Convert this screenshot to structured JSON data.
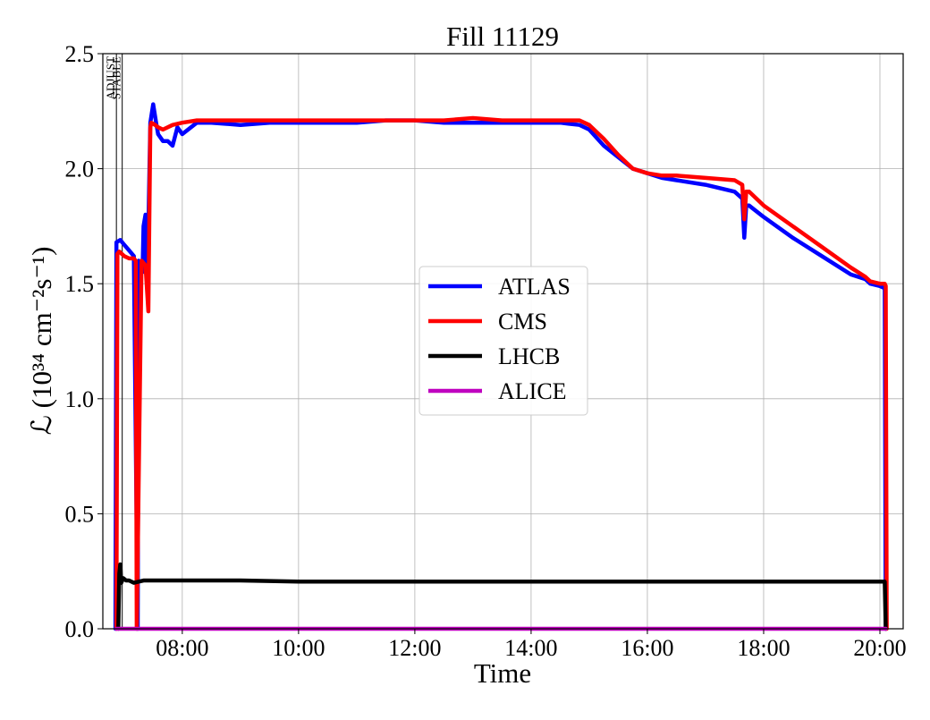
{
  "chart_data": {
    "type": "line",
    "title": "Fill 11129",
    "xlabel": "Time",
    "ylabel": "ℒ (10³⁴ cm⁻²s⁻¹)",
    "ylim": [
      0,
      2.5
    ],
    "xlim": [
      "06:38",
      "20:24"
    ],
    "grid": true,
    "legend_position": "center-right",
    "x_ticks": [
      "08:00",
      "10:00",
      "12:00",
      "14:00",
      "16:00",
      "18:00",
      "20:00"
    ],
    "y_ticks": [
      "0.0",
      "0.5",
      "1.0",
      "1.5",
      "2.0",
      "2.5"
    ],
    "phase_markers": [
      {
        "label": "ADJUST",
        "time": "06:52"
      },
      {
        "label": "STABLE",
        "time": "06:58"
      }
    ],
    "series": [
      {
        "name": "ATLAS",
        "color": "#0000ff",
        "x": [
          "06:51",
          "06:52",
          "06:56",
          "07:00",
          "07:04",
          "07:10",
          "07:14",
          "07:15",
          "07:19",
          "07:20",
          "07:22",
          "07:24",
          "07:27",
          "07:30",
          "07:33",
          "07:35",
          "07:40",
          "07:45",
          "07:50",
          "07:55",
          "08:00",
          "08:15",
          "08:30",
          "09:00",
          "09:30",
          "10:00",
          "10:30",
          "11:00",
          "11:30",
          "12:00",
          "12:30",
          "13:00",
          "13:30",
          "14:00",
          "14:30",
          "14:50",
          "15:00",
          "15:15",
          "15:30",
          "15:45",
          "16:00",
          "16:15",
          "16:30",
          "17:00",
          "17:30",
          "17:38",
          "17:40",
          "17:42",
          "17:45",
          "18:00",
          "18:30",
          "19:00",
          "19:30",
          "19:45",
          "19:50",
          "20:00",
          "20:05",
          "20:06"
        ],
        "y": [
          0.0,
          1.68,
          1.69,
          1.67,
          1.65,
          1.62,
          0.0,
          1.6,
          1.55,
          1.75,
          1.8,
          1.5,
          2.2,
          2.28,
          2.2,
          2.15,
          2.12,
          2.12,
          2.1,
          2.18,
          2.15,
          2.2,
          2.2,
          2.19,
          2.2,
          2.2,
          2.2,
          2.2,
          2.21,
          2.21,
          2.2,
          2.2,
          2.2,
          2.2,
          2.2,
          2.19,
          2.17,
          2.1,
          2.05,
          2.0,
          1.98,
          1.96,
          1.95,
          1.93,
          1.9,
          1.87,
          1.7,
          1.84,
          1.84,
          1.79,
          1.7,
          1.62,
          1.54,
          1.52,
          1.5,
          1.49,
          1.48,
          0.0
        ]
      },
      {
        "name": "CMS",
        "color": "#ff0000",
        "x": [
          "06:52",
          "06:53",
          "06:55",
          "07:00",
          "07:05",
          "07:10",
          "07:12",
          "07:13",
          "07:18",
          "07:22",
          "07:25",
          "07:27",
          "07:28",
          "07:32",
          "07:35",
          "07:40",
          "07:50",
          "08:00",
          "08:15",
          "08:30",
          "09:00",
          "09:30",
          "10:00",
          "10:30",
          "11:00",
          "11:30",
          "12:00",
          "12:30",
          "13:00",
          "13:30",
          "14:00",
          "14:30",
          "14:50",
          "15:00",
          "15:15",
          "15:30",
          "15:45",
          "16:00",
          "16:15",
          "16:30",
          "17:00",
          "17:30",
          "17:38",
          "17:40",
          "17:42",
          "17:45",
          "18:00",
          "18:30",
          "19:00",
          "19:30",
          "19:45",
          "19:50",
          "20:00",
          "20:05",
          "20:06",
          "20:07"
        ],
        "y": [
          0.0,
          1.63,
          1.64,
          1.62,
          1.61,
          1.61,
          1.6,
          0.0,
          1.6,
          1.58,
          1.38,
          2.18,
          2.2,
          2.19,
          2.18,
          2.17,
          2.19,
          2.2,
          2.21,
          2.21,
          2.21,
          2.21,
          2.21,
          2.21,
          2.21,
          2.21,
          2.21,
          2.21,
          2.22,
          2.21,
          2.21,
          2.21,
          2.21,
          2.19,
          2.13,
          2.06,
          2.0,
          1.98,
          1.97,
          1.97,
          1.96,
          1.95,
          1.93,
          1.78,
          1.9,
          1.9,
          1.84,
          1.75,
          1.66,
          1.57,
          1.53,
          1.51,
          1.5,
          1.5,
          1.49,
          0.0
        ]
      },
      {
        "name": "LHCB",
        "color": "#000000",
        "x": [
          "06:54",
          "06:55",
          "06:56",
          "06:57",
          "06:59",
          "07:02",
          "07:05",
          "07:10",
          "07:20",
          "07:30",
          "08:00",
          "09:00",
          "10:00",
          "11:00",
          "12:00",
          "13:00",
          "14:00",
          "15:00",
          "16:00",
          "17:00",
          "18:00",
          "19:00",
          "19:45",
          "20:00",
          "20:05",
          "20:06"
        ],
        "y": [
          0.0,
          0.24,
          0.28,
          0.2,
          0.22,
          0.21,
          0.21,
          0.2,
          0.21,
          0.21,
          0.21,
          0.21,
          0.205,
          0.205,
          0.205,
          0.205,
          0.205,
          0.205,
          0.205,
          0.205,
          0.205,
          0.205,
          0.205,
          0.205,
          0.205,
          0.0
        ]
      },
      {
        "name": "ALICE",
        "color": "#bf00bf",
        "x": [
          "06:52",
          "20:06"
        ],
        "y": [
          0.0,
          0.0
        ]
      }
    ]
  }
}
